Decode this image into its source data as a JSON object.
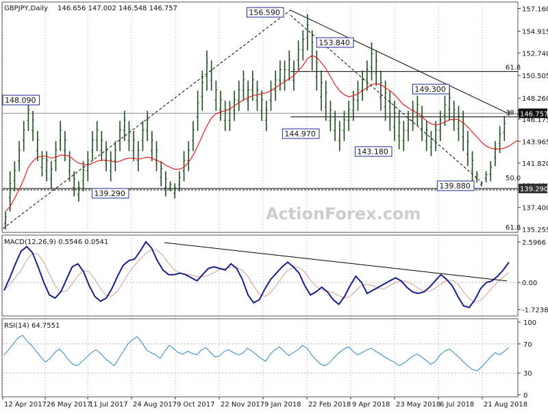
{
  "header": {
    "symbol": "GBPJPY,Daily",
    "ohlc": "146.656 147.002 146.548 146.757"
  },
  "watermark": "ActionForex.com",
  "colors": {
    "candle": "#1a4d1a",
    "ma": "#e0201b",
    "trend": "#000000",
    "label_border": "#1a2a8c",
    "macd": "#141d8a",
    "signal": "#d99a9a",
    "rsi": "#2f86c4",
    "grid": "#aaaaaa",
    "last_bg": "#111111"
  },
  "chart_data": [
    {
      "type": "candlestick",
      "title": "GBPJPY,Daily",
      "y_axis_ticks": [
        "157.160",
        "154.915",
        "152.740",
        "150.505",
        "148.260",
        "146.175",
        "143.965",
        "141.820",
        "139.610",
        "137.400",
        "135.255"
      ],
      "ylim": [
        135.0,
        157.6
      ],
      "x_dates": [
        "12 Apr 2017",
        "26 May 2017",
        "11 Jul 2017",
        "24 Aug 2017",
        "9 Oct 2017",
        "22 Nov 2017",
        "9 Jan 2018",
        "22 Feb 2018",
        "9 Apr 2018",
        "23 May 2018",
        "6 Jul 2018",
        "21 Aug 2018"
      ],
      "last_price": "146.757",
      "annotations": [
        "156.590",
        "153.840",
        "149.300",
        "144.970",
        "143.180",
        "139.880",
        "139.290",
        "148.090"
      ],
      "fib_labels": [
        "61.8",
        "38.2",
        "50.0",
        "61.8"
      ],
      "highs": [
        137,
        141,
        142,
        144,
        146,
        148,
        147,
        145,
        143,
        143,
        142,
        144,
        146,
        145,
        143,
        141,
        140,
        142,
        143,
        145,
        146,
        145,
        144,
        143,
        144,
        146,
        147,
        146,
        145,
        144,
        146,
        147,
        145,
        144,
        142,
        141,
        140,
        139.8,
        141,
        143,
        144,
        146,
        149,
        151,
        153,
        152,
        150,
        149,
        148,
        148,
        149,
        150,
        151,
        150,
        151,
        150,
        149,
        148,
        150,
        151,
        152,
        152,
        153,
        152,
        154,
        155,
        156.6,
        155,
        153,
        151,
        150,
        148,
        147,
        146,
        147,
        148,
        149,
        150,
        151,
        152,
        153.8,
        153,
        151,
        150,
        149,
        148,
        147,
        146,
        147,
        148,
        148.5,
        147.5,
        146,
        145,
        146,
        147,
        148.5,
        149.3,
        148,
        147.5,
        147,
        145,
        143,
        141,
        140,
        141,
        142,
        144,
        145.5,
        146.5,
        147
      ],
      "lows": [
        135.2,
        137,
        139,
        141,
        143,
        145,
        144,
        142,
        140.5,
        140,
        139.3,
        141,
        143,
        142,
        140,
        138.5,
        138,
        139,
        140,
        142,
        143,
        142,
        141,
        140,
        141,
        143,
        144,
        143,
        142,
        141,
        143,
        144,
        142,
        141,
        139.5,
        138.5,
        139,
        138.3,
        139,
        140,
        141,
        143,
        145,
        147,
        149,
        149,
        147,
        146,
        145,
        145,
        146,
        147,
        148,
        147,
        148,
        147,
        146,
        145,
        147,
        148,
        149,
        149,
        150,
        149,
        151,
        152,
        153,
        151,
        149,
        147,
        146,
        144.97,
        144,
        143,
        144,
        145,
        146,
        147,
        148,
        149,
        150,
        149.5,
        147,
        146,
        145,
        144,
        143.18,
        143,
        144,
        145,
        145.5,
        144,
        143,
        142.5,
        143,
        144,
        145.5,
        146,
        145,
        144,
        143,
        141.5,
        140,
        139.88,
        139.5,
        139.9,
        140,
        141.5,
        142.8,
        144,
        146.5
      ],
      "ma": [
        137,
        137.5,
        138.3,
        139.2,
        140.2,
        141.4,
        142,
        142.4,
        142.5,
        142.5,
        142.3,
        142.4,
        142.6,
        142.6,
        142.5,
        142.1,
        141.8,
        141.7,
        141.6,
        141.8,
        142,
        142.1,
        142.1,
        142,
        141.9,
        142,
        142.2,
        142.3,
        142.3,
        142.2,
        142.3,
        142.4,
        142.3,
        142.1,
        141.9,
        141.6,
        141.4,
        141.2,
        141.2,
        141.4,
        141.9,
        142.6,
        143.5,
        144.5,
        145.5,
        146.3,
        146.7,
        146.9,
        147,
        147.2,
        147.5,
        147.8,
        148.1,
        148.3,
        148.5,
        148.6,
        148.7,
        148.8,
        149,
        149.3,
        149.6,
        149.9,
        150.2,
        150.5,
        151,
        151.5,
        152.2,
        152.5,
        152.3,
        151.8,
        151.2,
        150.4,
        149.6,
        149,
        148.6,
        148.4,
        148.5,
        148.7,
        149,
        149.3,
        149.6,
        149.7,
        149.6,
        149.3,
        149,
        148.6,
        148.1,
        147.6,
        147.3,
        147,
        146.8,
        146.4,
        146,
        145.7,
        145.6,
        145.7,
        145.9,
        146.1,
        146.2,
        146.1,
        145.8,
        145.4,
        144.9,
        144.4,
        143.9,
        143.5,
        143.3,
        143.2,
        143.2,
        143.3,
        143.5,
        143.8,
        144.1
      ]
    },
    {
      "type": "line",
      "title": "MACD(12,26,9) 0.5546 0.0541",
      "y_axis_ticks": [
        "2.5966",
        "0.00",
        "-1.7238"
      ],
      "ylim": [
        -2.1,
        2.9
      ],
      "series": [
        {
          "name": "MACD",
          "values": [
            -0.5,
            0.3,
            1.2,
            2.0,
            2.3,
            1.9,
            1.0,
            0.0,
            -0.8,
            -1.0,
            -0.6,
            0.2,
            1.0,
            1.2,
            0.7,
            -0.2,
            -0.9,
            -1.2,
            -1.0,
            -0.4,
            0.4,
            1.1,
            1.4,
            1.5,
            2.0,
            2.6,
            2.2,
            1.4,
            0.8,
            0.5,
            0.5,
            0.6,
            0.5,
            0.3,
            0.1,
            0.5,
            0.9,
            1.0,
            0.9,
            0.8,
            1.2,
            0.9,
            0.2,
            -0.8,
            -1.3,
            -1.1,
            -0.4,
            0.2,
            0.6,
            1.0,
            1.3,
            1.0,
            0.6,
            -0.2,
            -0.8,
            -0.6,
            -0.3,
            -0.6,
            -1.1,
            -1.4,
            -0.9,
            -0.2,
            0.4,
            0.0,
            -0.7,
            -0.5,
            -0.3,
            -0.1,
            0.1,
            0.3,
            0.1,
            -0.3,
            -0.6,
            -0.7,
            -0.6,
            -0.3,
            0.1,
            0.5,
            0.2,
            -0.2,
            -0.9,
            -1.5,
            -1.6,
            -1.1,
            -0.4,
            0.0,
            0.1,
            0.4,
            0.8,
            1.3
          ]
        }
      ]
    },
    {
      "type": "line",
      "title": "RSI(14) 64.7551",
      "y_axis_ticks": [
        "100",
        "70",
        "30",
        "0"
      ],
      "ylim": [
        0,
        100
      ],
      "series": [
        {
          "name": "RSI",
          "values": [
            55,
            62,
            70,
            78,
            82,
            74,
            68,
            60,
            52,
            45,
            50,
            58,
            63,
            57,
            48,
            42,
            40,
            46,
            52,
            58,
            62,
            57,
            50,
            45,
            40,
            50,
            60,
            70,
            76,
            80,
            72,
            62,
            58,
            55,
            50,
            60,
            68,
            63,
            58,
            56,
            60,
            57,
            55,
            62,
            65,
            58,
            52,
            54,
            60,
            62,
            58,
            55,
            57,
            64,
            60,
            55,
            50,
            46,
            56,
            62,
            66,
            60,
            54,
            58,
            62,
            68,
            64,
            55,
            48,
            42,
            40,
            45,
            52,
            58,
            63,
            66,
            60,
            55,
            58,
            62,
            64,
            60,
            56,
            52,
            48,
            45,
            40,
            43,
            48,
            53,
            56,
            52,
            47,
            42,
            46,
            55,
            60,
            63,
            58,
            52,
            46,
            40,
            35,
            33,
            38,
            45,
            52,
            58,
            55,
            60,
            65
          ]
        }
      ]
    }
  ]
}
